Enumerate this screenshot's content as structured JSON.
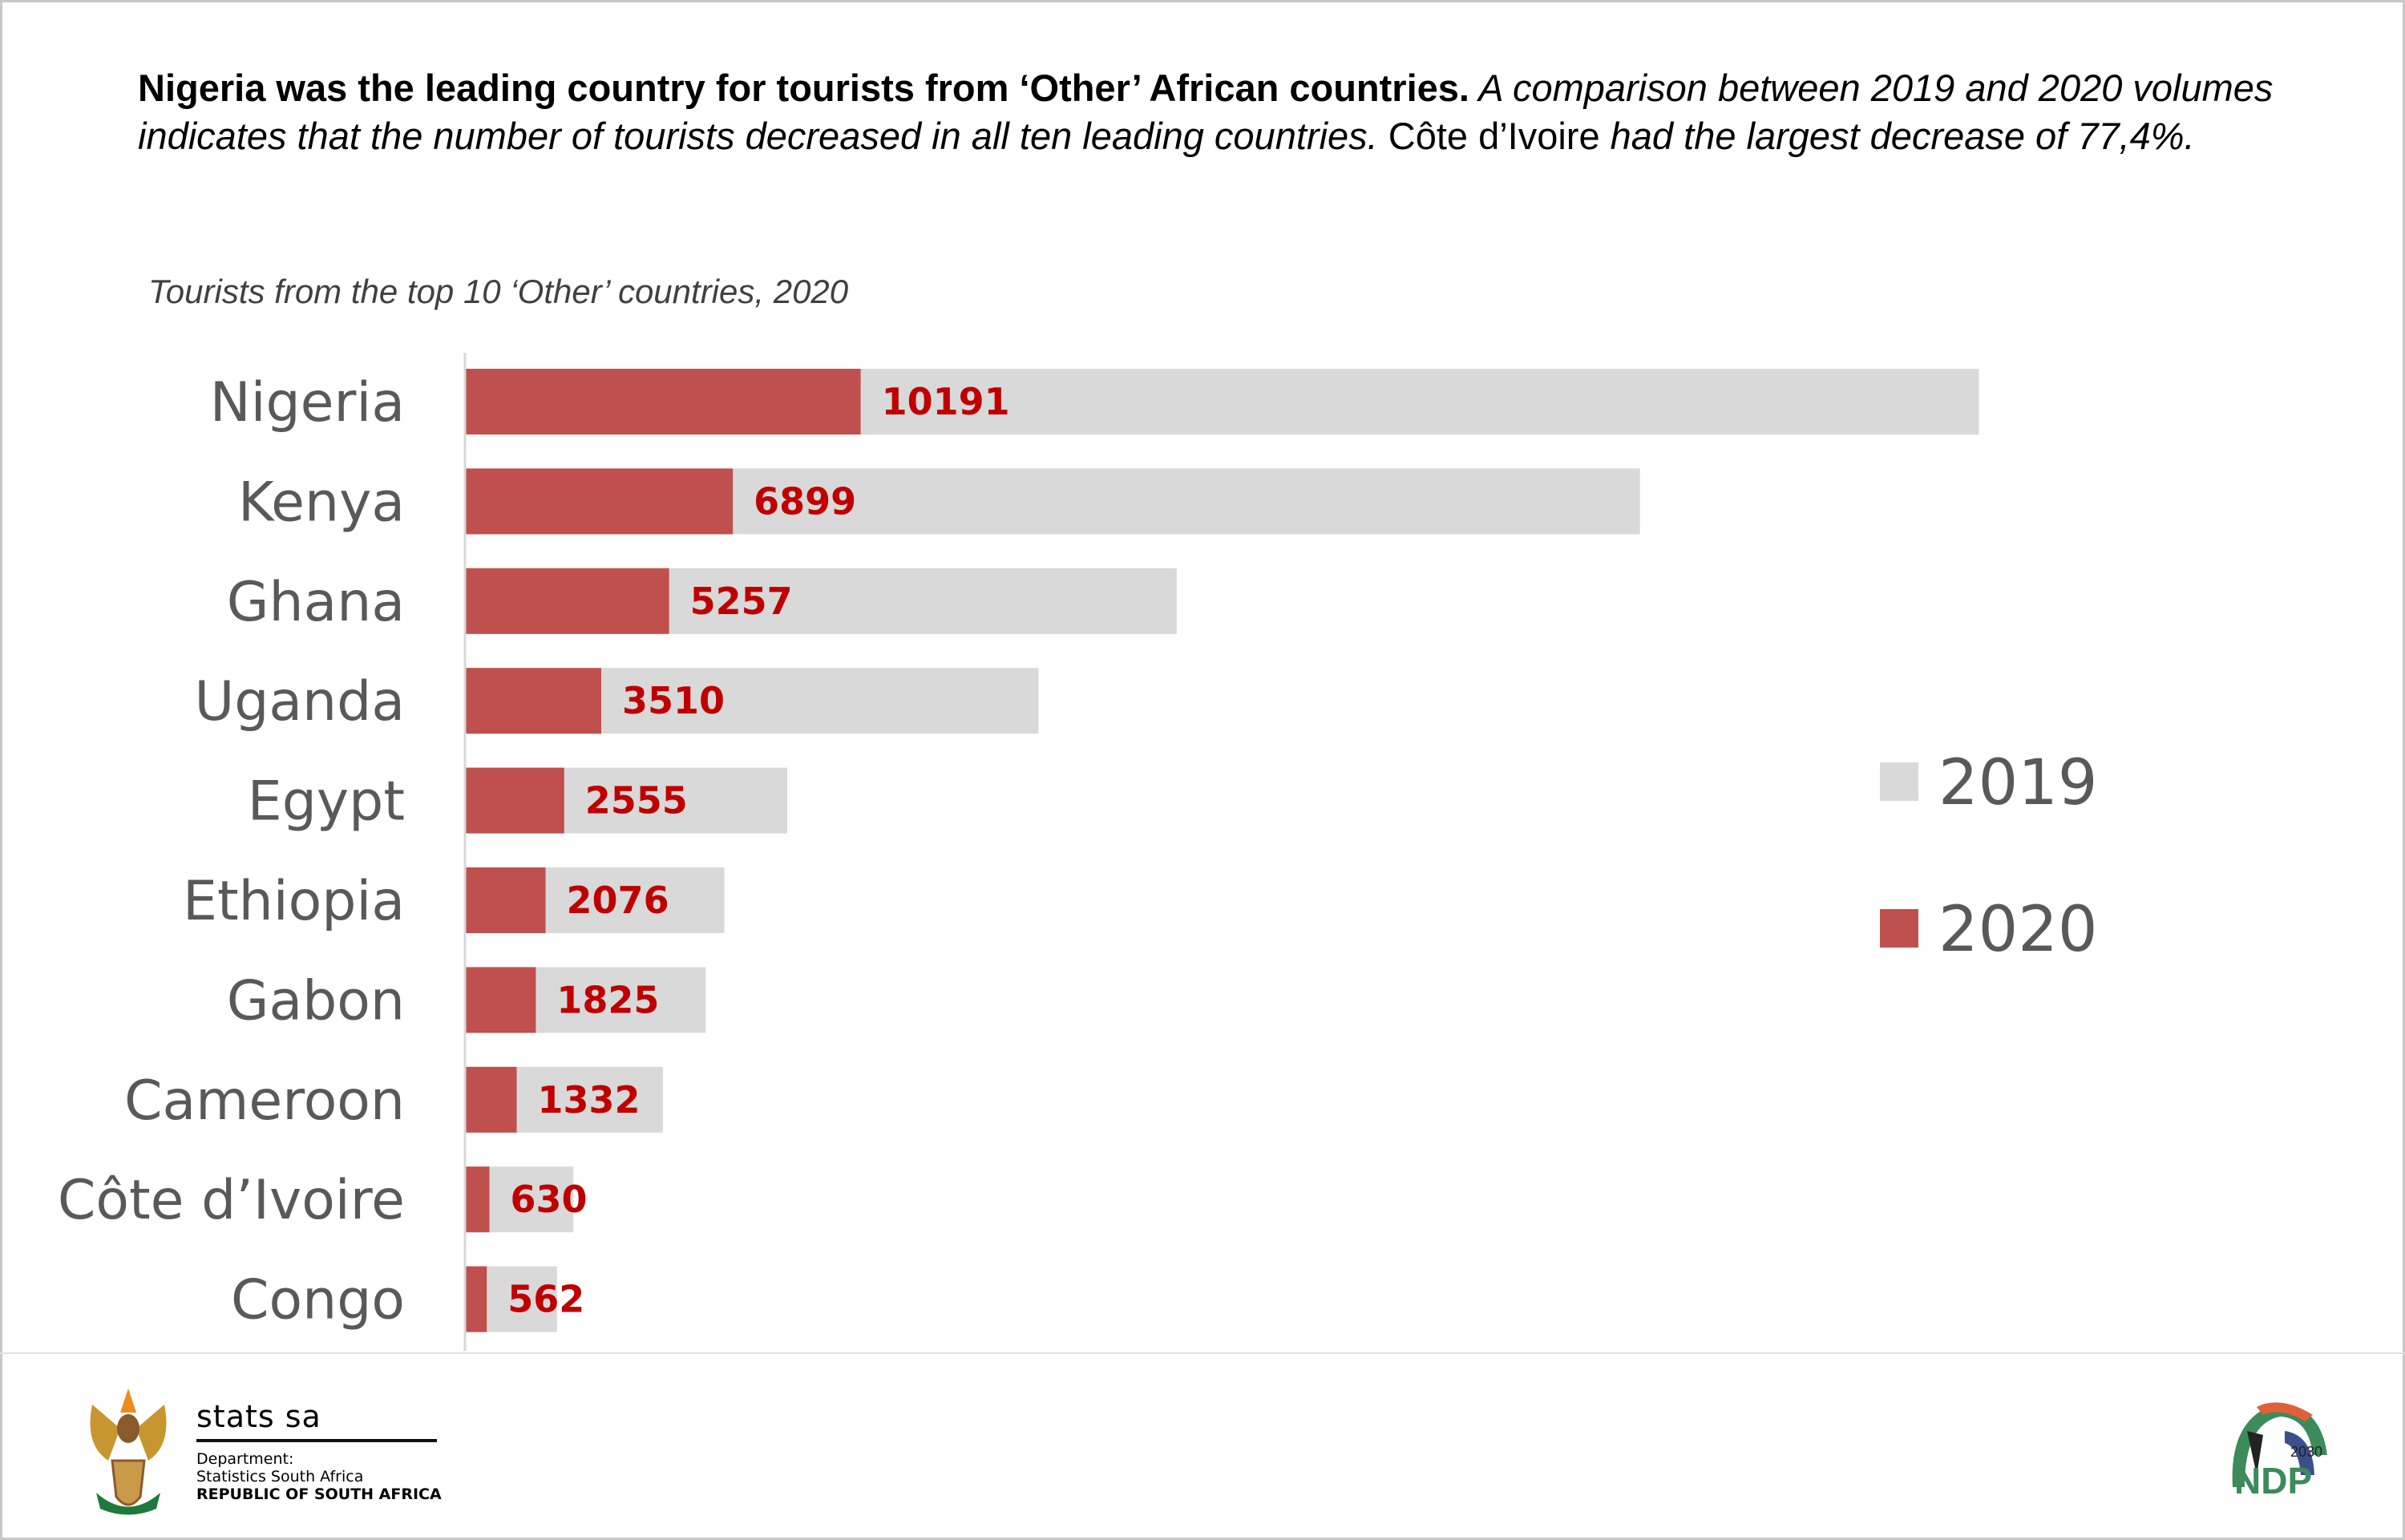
{
  "headline": {
    "bold": "Nigeria was the leading country for tourists from ‘Other’ African countries.",
    "italic1": " A comparison between 2019 and 2020 volumes indicates that the number of tourists decreased in all ten leading countries.",
    "plain": " Côte d’Ivoire ",
    "italic2": " had the largest decrease of 77,4%."
  },
  "chart_data": {
    "type": "bar",
    "orientation": "horizontal",
    "title": "Tourists from the top 10 ‘Other’ countries, 2020",
    "categories": [
      "Nigeria",
      "Kenya",
      "Ghana",
      "Uganda",
      "Egypt",
      "Ethiopia",
      "Gabon",
      "Cameroon",
      "Côte d’Ivoire",
      "Congo"
    ],
    "series": [
      {
        "name": "2019",
        "color": "#D9D9D9",
        "values": [
          38990,
          30260,
          18330,
          14770,
          8300,
          6680,
          6200,
          5100,
          2790,
          2370
        ]
      },
      {
        "name": "2020",
        "color": "#C0504D",
        "values": [
          10191,
          6899,
          5257,
          3510,
          2555,
          2076,
          1825,
          1332,
          630,
          562
        ]
      }
    ],
    "data_label_color": "#C00000",
    "data_labels_series": "2020",
    "overlap": true,
    "grid": false,
    "legend_position": "right"
  },
  "footer": {
    "stats_name": "stats sa",
    "dept_label": "Department:",
    "dept_name": "Statistics South Africa",
    "country": "REPUBLIC OF SOUTH AFRICA",
    "ndp_logo": "NDP 2030"
  }
}
